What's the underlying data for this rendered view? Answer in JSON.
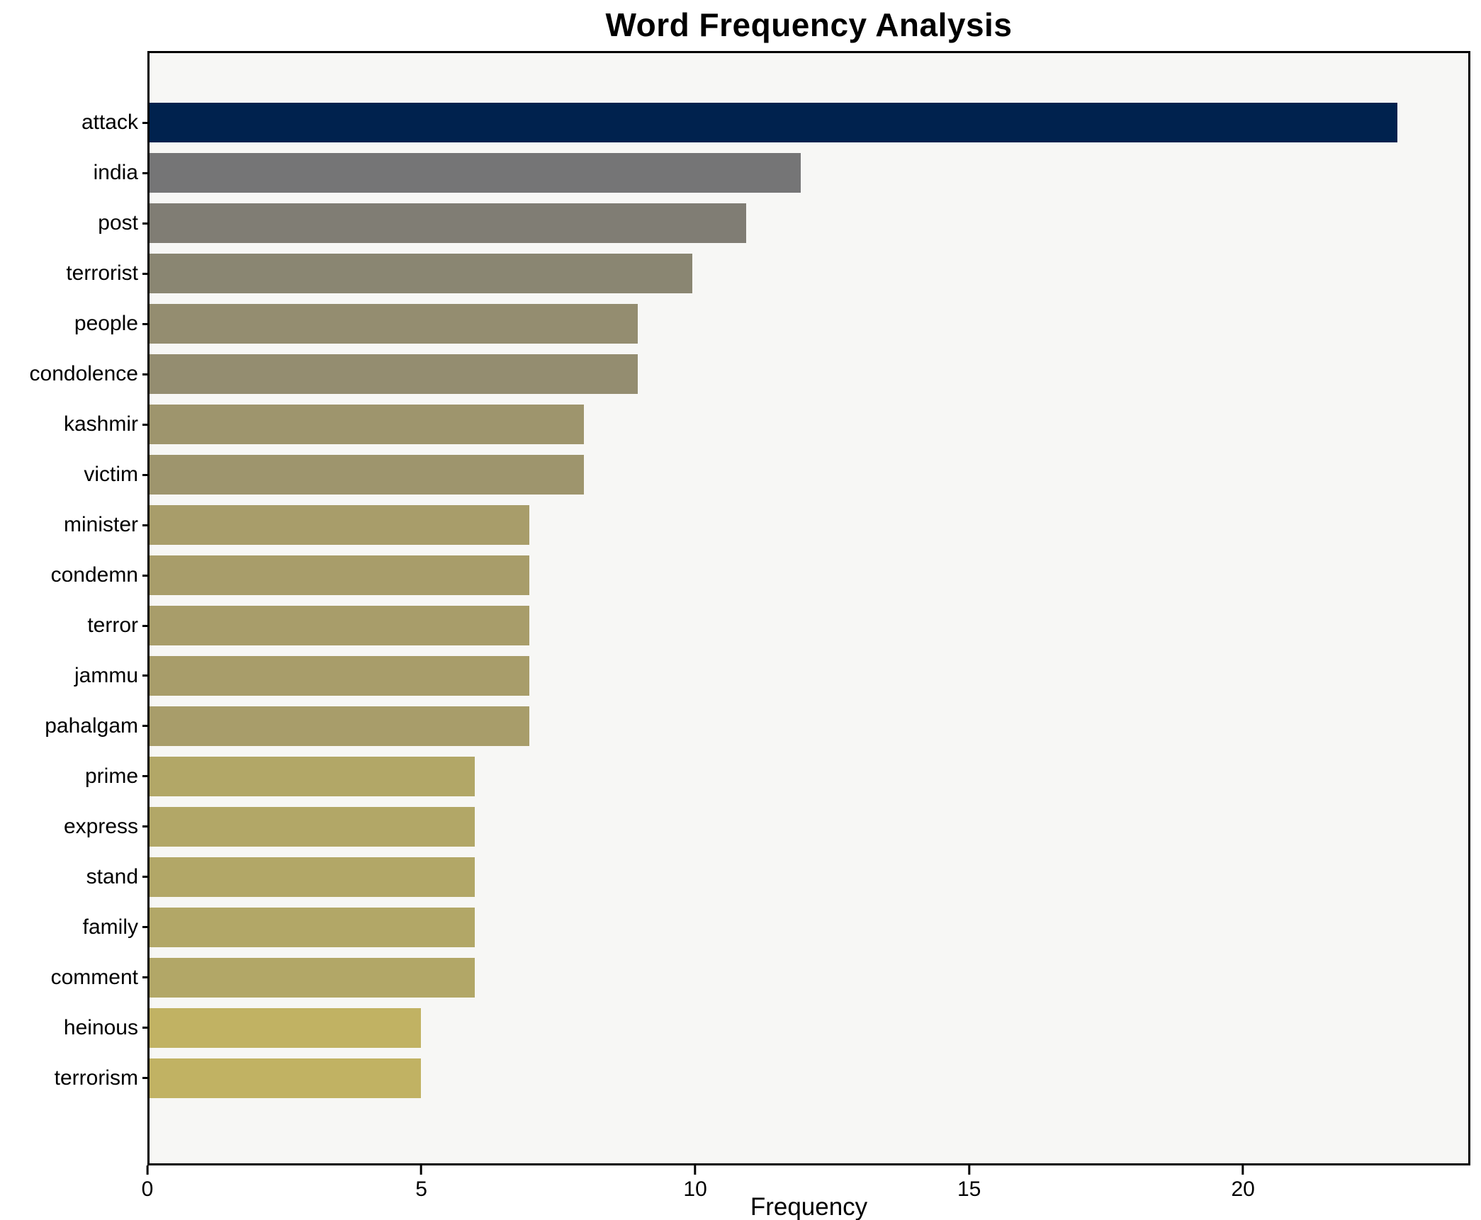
{
  "title": "Word Frequency Analysis",
  "chart_data": {
    "type": "bar",
    "orientation": "horizontal",
    "title": "Word Frequency Analysis",
    "xlabel": "Frequency",
    "ylabel": "",
    "categories": [
      "attack",
      "india",
      "post",
      "terrorist",
      "people",
      "condolence",
      "kashmir",
      "victim",
      "minister",
      "condemn",
      "terror",
      "jammu",
      "pahalgam",
      "prime",
      "express",
      "stand",
      "family",
      "comment",
      "heinous",
      "terrorism"
    ],
    "values": [
      23,
      12,
      11,
      10,
      9,
      9,
      8,
      8,
      7,
      7,
      7,
      7,
      7,
      6,
      6,
      6,
      6,
      6,
      5,
      5
    ],
    "bar_colors": [
      "#00224e",
      "#757576",
      "#807d74",
      "#8a8672",
      "#948d70",
      "#948d70",
      "#9e956d",
      "#9e956d",
      "#a89d6a",
      "#a89d6a",
      "#a89d6a",
      "#a89d6a",
      "#a89d6a",
      "#b2a767",
      "#b2a767",
      "#b2a767",
      "#b2a767",
      "#b2a767",
      "#c1b263",
      "#c1b263"
    ],
    "xticks": [
      0,
      5,
      10,
      15,
      20
    ],
    "xlim": [
      0,
      24.15
    ],
    "grid": false,
    "legend": "none",
    "plot_background": "#f7f7f5",
    "figure_background": "#ffffff",
    "spine_color": "#000000"
  }
}
